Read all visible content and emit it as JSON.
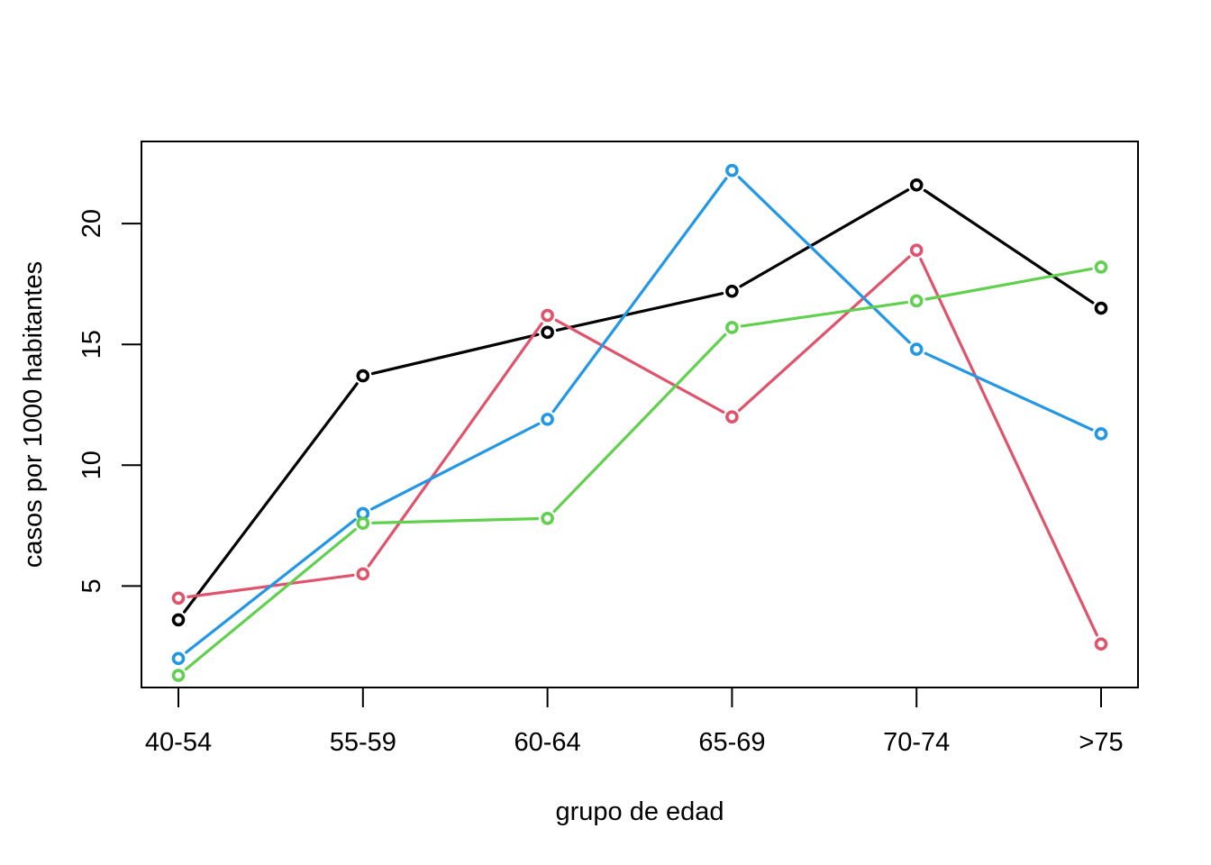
{
  "chart_data": {
    "type": "line",
    "title": "",
    "xlabel": "grupo de edad",
    "ylabel": "casos por 1000 habitantes",
    "categories": [
      "40-54",
      "55-59",
      "60-64",
      "65-69",
      "70-74",
      ">75"
    ],
    "y_ticks": [
      "5",
      "10",
      "15",
      "20"
    ],
    "ylim": [
      0.8,
      23.4
    ],
    "grid": false,
    "legend": "none",
    "marker": "open-circle",
    "series": [
      {
        "color": "#000000",
        "values": [
          3.6,
          13.7,
          15.5,
          17.2,
          21.6,
          16.5
        ]
      },
      {
        "color": "#DF536B",
        "values": [
          4.5,
          5.5,
          16.2,
          12.0,
          18.9,
          2.6
        ]
      },
      {
        "color": "#2297E6",
        "values": [
          2.0,
          8.0,
          11.9,
          22.2,
          14.8,
          11.3
        ]
      },
      {
        "color": "#61D04F",
        "values": [
          1.3,
          7.6,
          7.8,
          15.7,
          16.8,
          18.2
        ]
      }
    ]
  }
}
